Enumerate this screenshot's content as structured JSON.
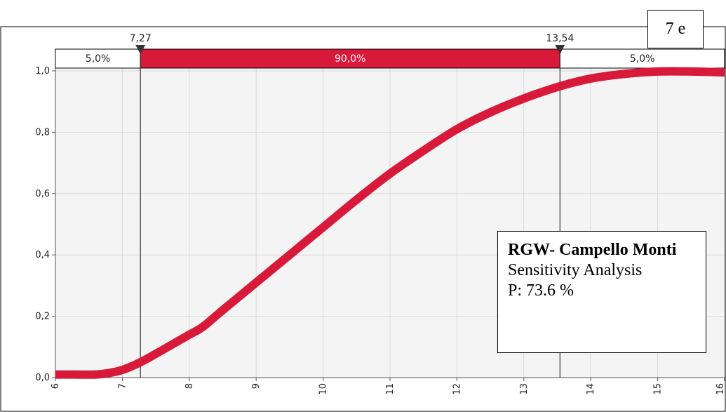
{
  "figure_label": "7 e",
  "infobox": {
    "title": "RGW- Campello Monti",
    "subtitle": "Sensitivity Analysis",
    "probability": "P: 73.6 %"
  },
  "colors": {
    "curve": "#d9193a",
    "band_middle": "#d9193a",
    "plot_bg": "#f4f4f4",
    "grid": "#d8d8d8"
  },
  "chart_data": {
    "type": "line",
    "title": "",
    "xlabel": "",
    "ylabel": "",
    "xlim": [
      6,
      16
    ],
    "ylim": [
      0,
      1.0
    ],
    "grid": true,
    "x_ticks": [
      6,
      7,
      8,
      9,
      10,
      11,
      12,
      13,
      14,
      15,
      16
    ],
    "x_tick_labels": [
      "6",
      "7",
      "8",
      "9",
      "10",
      "11",
      "12",
      "13",
      "14",
      "15",
      "16"
    ],
    "y_ticks": [
      0.0,
      0.2,
      0.4,
      0.6,
      0.8,
      1.0
    ],
    "y_tick_labels": [
      "0,0",
      "0,2",
      "0,4",
      "0,6",
      "0,8",
      "1,0"
    ],
    "series": [
      {
        "x": [
          6.0,
          6.3,
          6.6,
          6.8,
          7.0,
          7.27,
          7.6,
          8.0,
          8.2,
          8.5,
          9.0,
          9.5,
          10.0,
          10.5,
          11.0,
          11.5,
          12.0,
          12.5,
          13.0,
          13.54,
          14.0,
          14.5,
          15.0,
          15.5,
          16.0
        ],
        "y": [
          0.01,
          0.01,
          0.01,
          0.015,
          0.025,
          0.05,
          0.09,
          0.14,
          0.165,
          0.22,
          0.31,
          0.4,
          0.49,
          0.58,
          0.665,
          0.74,
          0.81,
          0.865,
          0.91,
          0.95,
          0.975,
          0.99,
          0.998,
          0.998,
          0.995
        ]
      }
    ],
    "markers": [
      {
        "x": 7.27,
        "label": "7,27"
      },
      {
        "x": 13.54,
        "label": "13,54"
      }
    ],
    "bands": [
      {
        "label": "5,0%",
        "from": 6,
        "to": 7.27
      },
      {
        "label": "90,0%",
        "from": 7.27,
        "to": 13.54
      },
      {
        "label": "5,0%",
        "from": 13.54,
        "to": 16
      }
    ]
  }
}
